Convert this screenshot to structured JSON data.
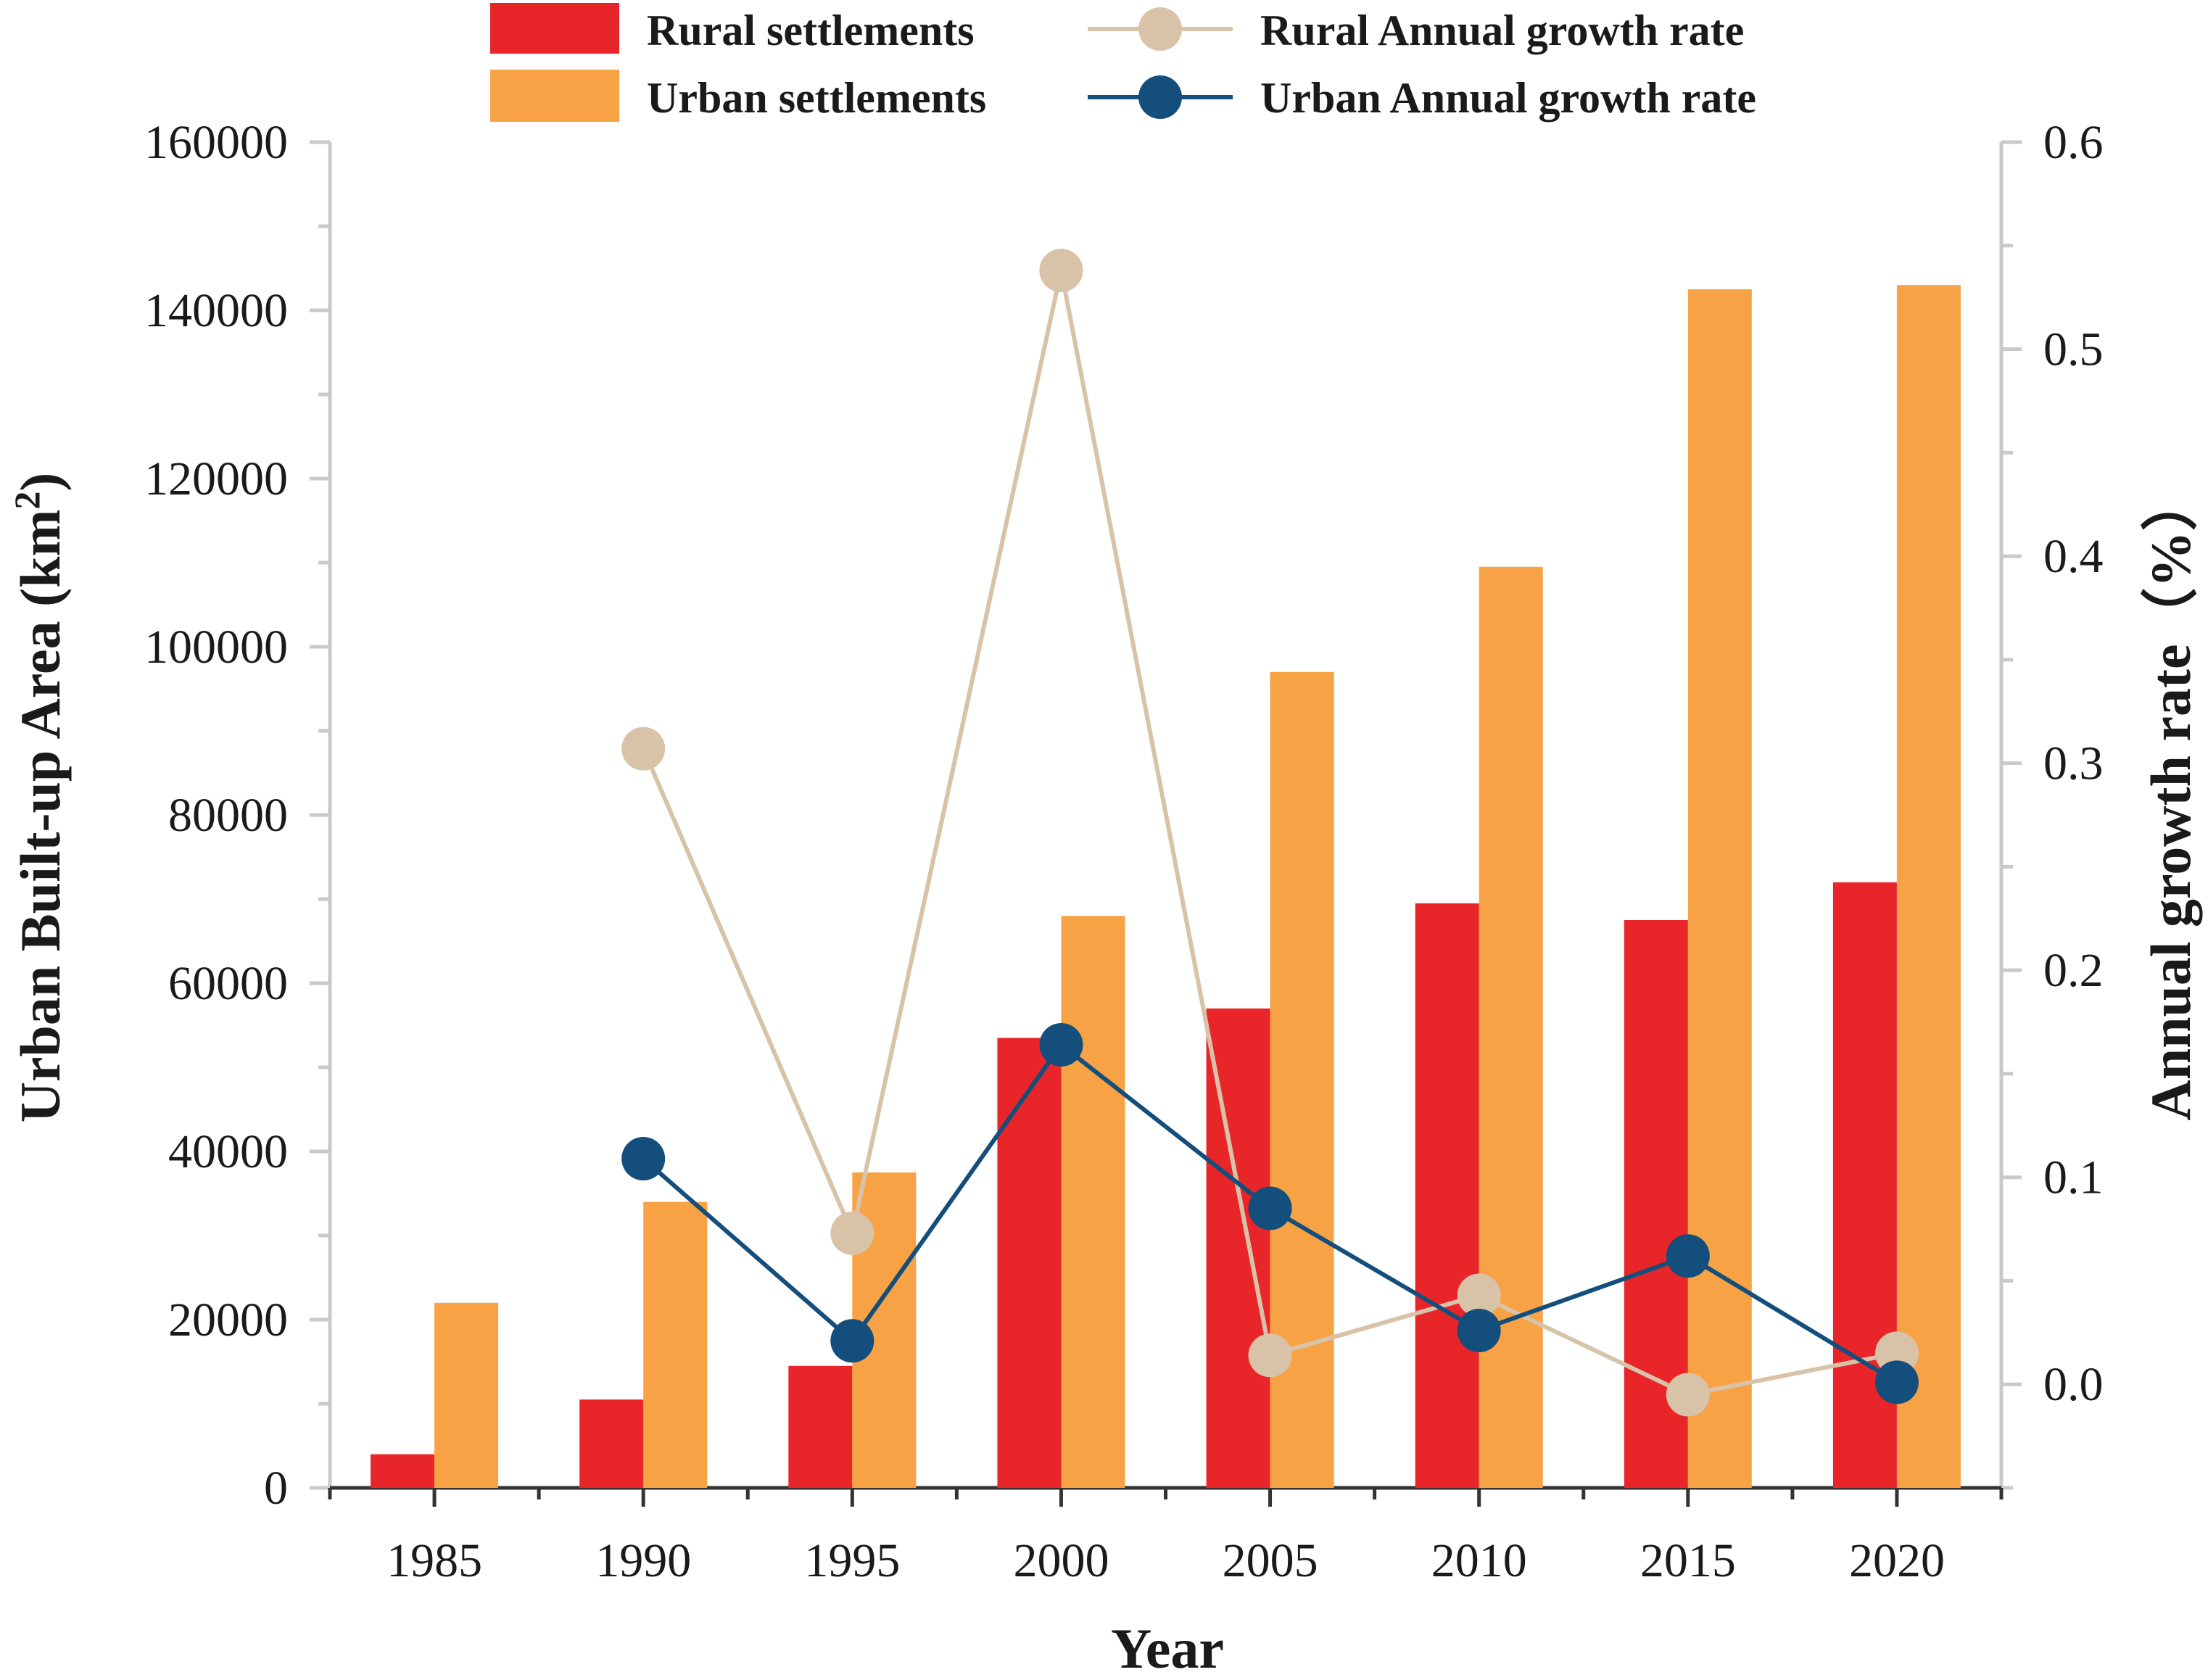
{
  "chart_data": {
    "type": "bar",
    "categories": [
      "1985",
      "1990",
      "1995",
      "2000",
      "2005",
      "2010",
      "2015",
      "2020"
    ],
    "bar_series": [
      {
        "name": "Rural settlements",
        "color": "#e8262a",
        "values": [
          4000,
          10500,
          14500,
          53500,
          57000,
          69500,
          67500,
          72000
        ]
      },
      {
        "name": "Urban settlements",
        "color": "#f7a245",
        "values": [
          22000,
          34000,
          37500,
          68000,
          97000,
          109500,
          142500,
          143000
        ]
      }
    ],
    "line_series": [
      {
        "name": "Rural Annual growth rate",
        "color": "#d9c3a8",
        "values": [
          null,
          0.307,
          0.073,
          0.538,
          0.014,
          0.043,
          -0.005,
          0.015
        ]
      },
      {
        "name": "Urban Annual growth rate",
        "color": "#134e7c",
        "values": [
          null,
          0.109,
          0.021,
          0.164,
          0.085,
          0.026,
          0.062,
          0.001
        ]
      }
    ],
    "xlabel": "Year",
    "ylabel_left": "Urban Built-up Area (km",
    "ylabel_left_sup": "2",
    "ylabel_left_close": ")",
    "ylabel_right": "Annual growth rate（%）",
    "ylim_left": [
      0,
      160000
    ],
    "ylim_right": [
      -0.05,
      0.6
    ],
    "yticks_left": [
      "0",
      "20000",
      "40000",
      "60000",
      "80000",
      "100000",
      "120000",
      "140000",
      "160000"
    ],
    "yticks_right": [
      "0.0",
      "0.1",
      "0.2",
      "0.3",
      "0.4",
      "0.5",
      "0.6"
    ],
    "grid": false,
    "legend_position": "top"
  }
}
